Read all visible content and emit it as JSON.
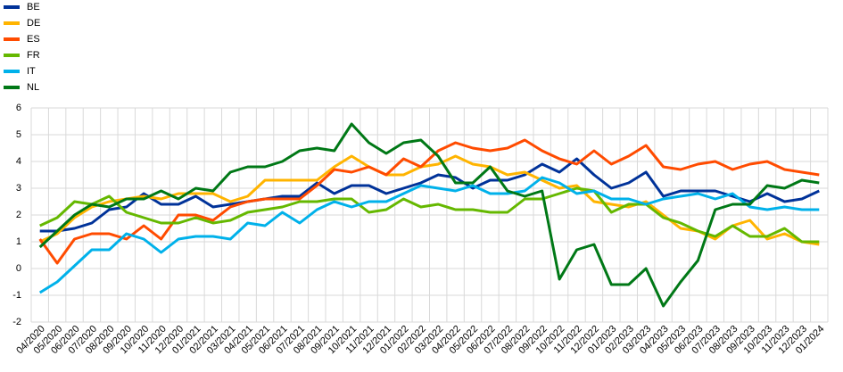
{
  "chart_data": {
    "type": "line",
    "categories": [
      "04/2020",
      "05/2020",
      "06/2020",
      "07/2020",
      "08/2020",
      "09/2020",
      "10/2020",
      "11/2020",
      "12/2020",
      "01/2021",
      "02/2021",
      "03/2021",
      "04/2021",
      "05/2021",
      "06/2021",
      "07/2021",
      "08/2021",
      "09/2021",
      "10/2021",
      "11/2021",
      "12/2021",
      "01/2022",
      "02/2022",
      "03/2022",
      "04/2022",
      "05/2022",
      "06/2022",
      "07/2022",
      "08/2022",
      "09/2022",
      "10/2022",
      "11/2022",
      "12/2022",
      "01/2023",
      "02/2023",
      "03/2023",
      "04/2023",
      "05/2023",
      "06/2023",
      "07/2023",
      "08/2023",
      "09/2023",
      "10/2023",
      "11/2023",
      "12/2023",
      "01/2024"
    ],
    "series": [
      {
        "name": "BE",
        "color": "#003299",
        "values": [
          1.4,
          1.4,
          1.5,
          1.7,
          2.2,
          2.3,
          2.8,
          2.4,
          2.4,
          2.7,
          2.3,
          2.4,
          2.5,
          2.6,
          2.7,
          2.7,
          3.2,
          2.8,
          3.1,
          3.1,
          2.8,
          3.0,
          3.2,
          3.5,
          3.4,
          3.0,
          3.3,
          3.3,
          3.5,
          3.9,
          3.6,
          4.1,
          3.5,
          3.0,
          3.2,
          3.6,
          2.7,
          2.9,
          2.9,
          2.9,
          2.7,
          2.5,
          2.8,
          2.5,
          2.6,
          2.9
        ]
      },
      {
        "name": "DE",
        "color": "#ffb400",
        "values": [
          1.0,
          1.3,
          1.9,
          2.3,
          2.5,
          2.6,
          2.7,
          2.6,
          2.8,
          2.8,
          2.8,
          2.5,
          2.7,
          3.3,
          3.3,
          3.3,
          3.3,
          3.8,
          4.2,
          3.8,
          3.5,
          3.5,
          3.8,
          3.9,
          4.2,
          3.9,
          3.8,
          3.5,
          3.6,
          3.3,
          3.0,
          3.1,
          2.5,
          2.4,
          2.3,
          2.5,
          2.0,
          1.5,
          1.4,
          1.1,
          1.6,
          1.8,
          1.1,
          1.3,
          1.0,
          0.9
        ]
      },
      {
        "name": "ES",
        "color": "#ff4b00",
        "values": [
          1.1,
          0.2,
          1.1,
          1.3,
          1.3,
          1.1,
          1.6,
          1.1,
          2.0,
          2.0,
          1.8,
          2.3,
          2.5,
          2.6,
          2.6,
          2.6,
          3.1,
          3.7,
          3.6,
          3.8,
          3.5,
          4.1,
          3.8,
          4.4,
          4.7,
          4.5,
          4.4,
          4.5,
          4.8,
          4.4,
          4.1,
          3.9,
          4.4,
          3.9,
          4.2,
          4.6,
          3.8,
          3.7,
          3.9,
          4.0,
          3.7,
          3.9,
          4.0,
          3.7,
          3.6,
          3.5
        ]
      },
      {
        "name": "FR",
        "color": "#65b800",
        "values": [
          1.6,
          1.9,
          2.5,
          2.4,
          2.7,
          2.1,
          1.9,
          1.7,
          1.7,
          1.9,
          1.7,
          1.8,
          2.1,
          2.2,
          2.3,
          2.5,
          2.5,
          2.6,
          2.6,
          2.1,
          2.2,
          2.6,
          2.3,
          2.4,
          2.2,
          2.2,
          2.1,
          2.1,
          2.6,
          2.6,
          2.8,
          3.0,
          2.9,
          2.1,
          2.4,
          2.4,
          1.9,
          1.7,
          1.4,
          1.2,
          1.6,
          1.2,
          1.2,
          1.5,
          1.0,
          1.0
        ]
      },
      {
        "name": "IT",
        "color": "#00b1ea",
        "values": [
          -0.9,
          -0.5,
          0.1,
          0.7,
          0.7,
          1.3,
          1.1,
          0.6,
          1.1,
          1.2,
          1.2,
          1.1,
          1.7,
          1.6,
          2.1,
          1.7,
          2.2,
          2.5,
          2.3,
          2.5,
          2.5,
          2.8,
          3.1,
          3.0,
          2.9,
          3.1,
          2.8,
          2.8,
          2.9,
          3.4,
          3.2,
          2.8,
          2.9,
          2.6,
          2.6,
          2.4,
          2.6,
          2.7,
          2.8,
          2.6,
          2.8,
          2.3,
          2.2,
          2.3,
          2.2,
          2.2
        ]
      },
      {
        "name": "NL",
        "color": "#007816",
        "values": [
          0.8,
          1.4,
          2.0,
          2.4,
          2.3,
          2.6,
          2.6,
          2.9,
          2.6,
          3.0,
          2.9,
          3.6,
          3.8,
          3.8,
          4.0,
          4.4,
          4.5,
          4.4,
          5.4,
          4.7,
          4.3,
          4.7,
          4.8,
          4.2,
          3.2,
          3.2,
          3.8,
          2.9,
          2.7,
          2.9,
          -0.4,
          0.7,
          0.9,
          -0.6,
          -0.6,
          0.0,
          -1.4,
          -0.5,
          0.3,
          2.2,
          2.4,
          2.4,
          3.1,
          3.0,
          3.3,
          3.2
        ]
      }
    ],
    "ylim": [
      -2,
      6
    ],
    "yticks": [
      -2,
      -1,
      0,
      1,
      2,
      3,
      4,
      5,
      6
    ],
    "grid": true
  }
}
